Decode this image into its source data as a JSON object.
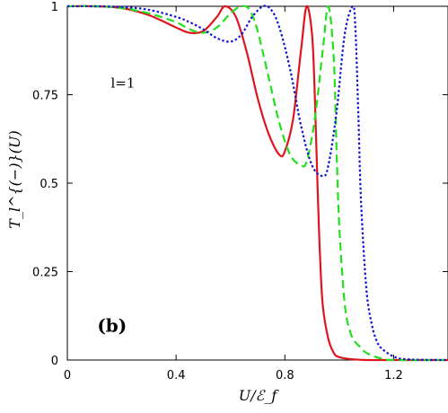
{
  "chart_data": {
    "type": "line",
    "title": "",
    "xlabel": "U/ℰ_f",
    "ylabel": "T_l^{(−)}(U)",
    "xlim": [
      0,
      1.4
    ],
    "ylim": [
      0,
      1
    ],
    "xticks": [
      0,
      0.4,
      0.8,
      1.2
    ],
    "xtick_labels": [
      "0",
      "0.4",
      "0.8",
      "1.2"
    ],
    "yticks": [
      0,
      0.25,
      0.5,
      0.75,
      1
    ],
    "ytick_labels": [
      "0",
      "0.25",
      "0.5",
      "0.75",
      "1"
    ],
    "grid": false,
    "legend": "none",
    "annotations": [
      {
        "text": "l=1",
        "x": 0.16,
        "y": 0.77
      },
      {
        "text": "(b)",
        "x": 0.11,
        "y": 0.08
      }
    ],
    "series": [
      {
        "color": "#e0141e",
        "style": "solid",
        "x": [
          0,
          0.1,
          0.2,
          0.3,
          0.4,
          0.45,
          0.5,
          0.55,
          0.58,
          0.62,
          0.66,
          0.7,
          0.74,
          0.78,
          0.8,
          0.83,
          0.86,
          0.88,
          0.9,
          0.91,
          0.92,
          0.93,
          0.94,
          0.96,
          0.98,
          1.0,
          1.05,
          1.1,
          1.2,
          1.4
        ],
        "y": [
          1,
          1,
          0.995,
          0.975,
          0.94,
          0.925,
          0.93,
          0.97,
          1.0,
          0.97,
          0.87,
          0.74,
          0.64,
          0.58,
          0.59,
          0.68,
          0.88,
          1.0,
          0.92,
          0.75,
          0.5,
          0.28,
          0.15,
          0.06,
          0.02,
          0.008,
          0.002,
          0,
          0,
          0
        ]
      },
      {
        "color": "#22e01e",
        "style": "dashed",
        "x": [
          0,
          0.1,
          0.2,
          0.3,
          0.4,
          0.45,
          0.5,
          0.55,
          0.6,
          0.64,
          0.67,
          0.7,
          0.74,
          0.78,
          0.82,
          0.86,
          0.88,
          0.91,
          0.94,
          0.96,
          0.98,
          0.99,
          1.0,
          1.02,
          1.04,
          1.06,
          1.08,
          1.1,
          1.15,
          1.2,
          1.4
        ],
        "y": [
          1,
          1,
          0.995,
          0.98,
          0.955,
          0.935,
          0.925,
          0.94,
          0.98,
          1.0,
          0.99,
          0.93,
          0.8,
          0.67,
          0.58,
          0.55,
          0.56,
          0.68,
          0.88,
          1.0,
          0.85,
          0.6,
          0.38,
          0.16,
          0.08,
          0.05,
          0.035,
          0.02,
          0.005,
          0,
          0
        ]
      },
      {
        "color": "#1414d2",
        "style": "dotted",
        "x": [
          0,
          0.1,
          0.2,
          0.3,
          0.4,
          0.45,
          0.5,
          0.55,
          0.6,
          0.64,
          0.68,
          0.72,
          0.75,
          0.78,
          0.82,
          0.86,
          0.9,
          0.94,
          0.96,
          0.99,
          1.02,
          1.05,
          1.06,
          1.07,
          1.08,
          1.1,
          1.12,
          1.14,
          1.16,
          1.2,
          1.25,
          1.4
        ],
        "y": [
          1,
          1,
          0.998,
          0.99,
          0.97,
          0.955,
          0.935,
          0.91,
          0.9,
          0.92,
          0.97,
          1.0,
          0.99,
          0.94,
          0.82,
          0.66,
          0.55,
          0.52,
          0.55,
          0.7,
          0.92,
          1.0,
          0.93,
          0.7,
          0.45,
          0.2,
          0.1,
          0.05,
          0.03,
          0.01,
          0.002,
          0
        ]
      }
    ]
  }
}
